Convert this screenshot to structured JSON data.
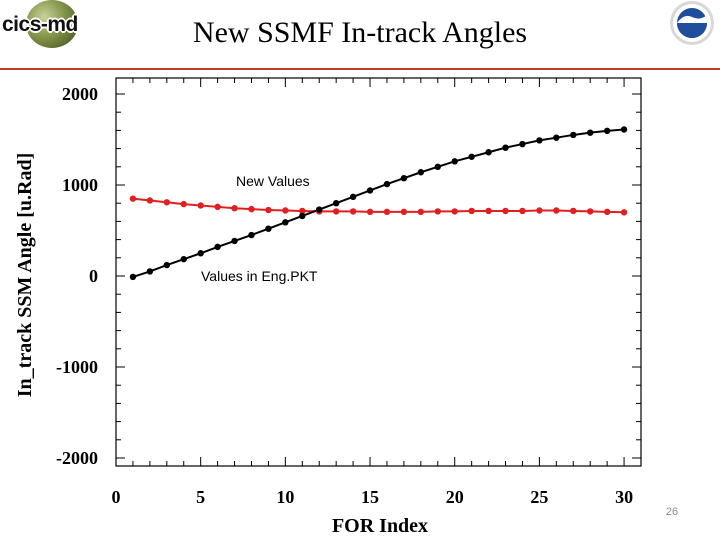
{
  "slide": {
    "title": "New SSMF In-track Angles",
    "page_number": "26",
    "logo_left_text": "cics-md",
    "logo_right_text": "NOAA"
  },
  "colors": {
    "rule": "#c0392b",
    "new_series": "#e02020",
    "old_series": "#000000"
  },
  "chart_data": {
    "type": "line",
    "title": "New SSMF In-track Angles",
    "xlabel": "FOR Index",
    "ylabel": "In_track SSM Angle [u.Rad]",
    "xlim": [
      0,
      31
    ],
    "ylim": [
      -2000,
      2000
    ],
    "xticks": [
      0,
      5,
      10,
      15,
      20,
      25,
      30
    ],
    "yticks": [
      -2000,
      -1000,
      0,
      1000,
      2000
    ],
    "xtick_labels": [
      "0",
      "5",
      "10",
      "15",
      "20",
      "25",
      "30"
    ],
    "ytick_labels": [
      "-2000",
      "-1000",
      "0",
      "1000",
      "2000"
    ],
    "grid": false,
    "x": [
      1,
      2,
      3,
      4,
      5,
      6,
      7,
      8,
      9,
      10,
      11,
      12,
      13,
      14,
      15,
      16,
      17,
      18,
      19,
      20,
      21,
      22,
      23,
      24,
      25,
      26,
      27,
      28,
      29,
      30
    ],
    "series": [
      {
        "name": "New Values",
        "color": "#e02020",
        "values": [
          850,
          830,
          810,
          790,
          775,
          760,
          745,
          735,
          725,
          720,
          715,
          710,
          710,
          710,
          705,
          705,
          705,
          705,
          710,
          710,
          715,
          715,
          715,
          715,
          720,
          720,
          715,
          710,
          705,
          700
        ]
      },
      {
        "name": "Values in Eng.PKT",
        "color": "#000000",
        "values": [
          -10,
          50,
          120,
          185,
          250,
          320,
          385,
          450,
          520,
          590,
          660,
          730,
          800,
          870,
          940,
          1010,
          1075,
          1140,
          1200,
          1260,
          1310,
          1360,
          1410,
          1450,
          1490,
          1520,
          1550,
          1575,
          1595,
          1610
        ]
      }
    ],
    "annotations": [
      {
        "text": "New Values",
        "series": "New Values"
      },
      {
        "text": "Values in Eng.PKT",
        "series": "Values in Eng.PKT"
      }
    ]
  }
}
